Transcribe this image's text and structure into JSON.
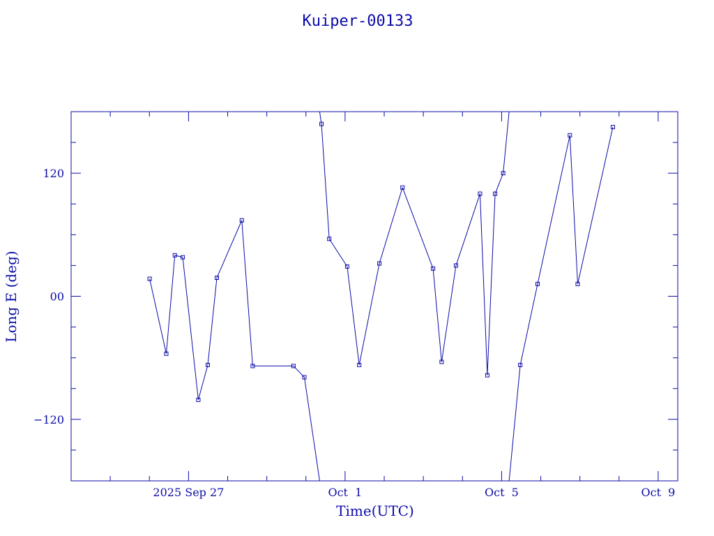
{
  "chart_data": {
    "type": "line",
    "title": "Kuiper-00133",
    "xlabel": "Time(UTC)",
    "ylabel": "Long E (deg)",
    "x_unit": "days",
    "x_ticks": [
      {
        "label": "2025 Sep 27",
        "x": "2025-09-27"
      },
      {
        "label": "Oct  1",
        "x": "2025-10-01"
      },
      {
        "label": "Oct  5",
        "x": "2025-10-05"
      },
      {
        "label": "Oct  9",
        "x": "2025-10-09"
      }
    ],
    "xlim": [
      "2025-09-24T00:00",
      "2025-10-09T12:00"
    ],
    "y_ticks": [
      {
        "label": "120",
        "value": 120
      },
      {
        "label": "00",
        "value": 0
      },
      {
        "label": "−120",
        "value": -120
      }
    ],
    "ylim": [
      -180,
      180
    ],
    "wrap": [
      -180,
      180
    ],
    "grid": false,
    "series": [
      {
        "x": [
          "2025-09-26T00:09",
          "2025-09-26T10:21",
          "2025-09-26T15:36",
          "2025-09-26T20:26",
          "2025-09-27T06:00",
          "2025-09-27T11:48",
          "2025-09-27T17:22",
          "2025-09-28T08:40",
          "2025-09-28T15:20",
          "2025-09-29T16:22",
          "2025-09-29T23:02",
          "2025-09-30T09:31",
          "2025-09-30T14:17",
          "2025-10-01T01:17",
          "2025-10-01T08:40",
          "2025-10-01T21:01",
          "2025-10-02T11:12",
          "2025-10-03T05:58",
          "2025-10-03T11:12",
          "2025-10-03T20:00",
          "2025-10-04T10:45",
          "2025-10-04T15:14",
          "2025-10-04T20:00",
          "2025-10-05T00:57",
          "2025-10-05T11:26",
          "2025-10-05T22:04",
          "2025-10-06T17:51",
          "2025-10-06T22:39",
          "2025-10-07T20:13"
        ],
        "values": [
          17,
          -56,
          40,
          38,
          -101,
          -67,
          18,
          74,
          -68,
          -68,
          -79,
          168,
          56,
          29,
          -67,
          32,
          106,
          27,
          -64,
          30,
          100,
          -77,
          100,
          120,
          -67,
          12,
          157,
          12,
          165
        ]
      }
    ]
  }
}
